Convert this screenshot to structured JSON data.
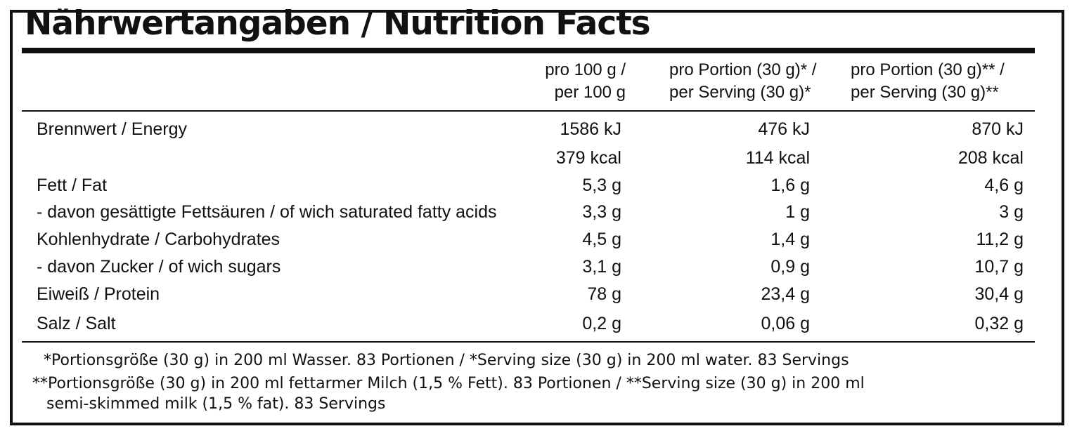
{
  "title": "Nährwertangaben / Nutrition Facts",
  "columns": [
    {
      "line1": "pro 100 g /",
      "line2": "per 100 g"
    },
    {
      "line1": "pro Portion (30 g)* /",
      "line2": "per Serving (30 g)*"
    },
    {
      "line1": "pro Portion (30 g)** /",
      "line2": "per Serving (30 g)**"
    }
  ],
  "rows": [
    {
      "label": "Brennwert / Energy",
      "values": [
        "1586 kJ",
        "476 kJ",
        "870 kJ"
      ]
    },
    {
      "label": "",
      "values": [
        "379 kcal",
        "114 kcal",
        "208 kcal"
      ]
    },
    {
      "label": "Fett / Fat",
      "values": [
        "5,3 g",
        "1,6 g",
        "4,6 g"
      ]
    },
    {
      "label": "- davon gesättigte Fettsäuren / of wich saturated fatty acids",
      "values": [
        "3,3 g",
        "1 g",
        "3 g"
      ]
    },
    {
      "label": "Kohlenhydrate / Carbohydrates",
      "values": [
        "4,5 g",
        "1,4 g",
        "11,2 g"
      ]
    },
    {
      "label": "- davon Zucker / of wich sugars",
      "values": [
        "3,1 g",
        "0,9 g",
        "10,7 g"
      ]
    },
    {
      "label": "Eiweiß / Protein",
      "values": [
        "78 g",
        "23,4 g",
        "30,4 g"
      ]
    },
    {
      "label": "Salz / Salt",
      "values": [
        "0,2 g",
        "0,06 g",
        "0,32 g"
      ]
    }
  ],
  "footnotes": {
    "line1": "*Portionsgröße (30 g) in 200 ml Wasser. 83 Portionen / *Serving size (30 g) in 200 ml water. 83 Servings",
    "line2": "**Portionsgröße (30 g) in 200 ml fettarmer Milch (1,5 % Fett). 83 Portionen / **Serving size (30 g) in 200 ml",
    "line3": "semi-skimmed milk (1,5 % fat). 83 Servings"
  }
}
